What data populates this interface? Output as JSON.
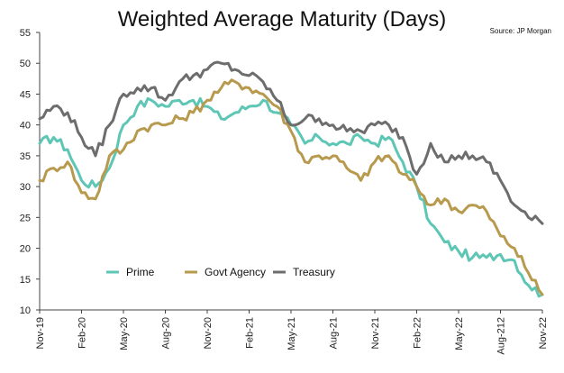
{
  "chart_data": {
    "type": "line",
    "title": "Weighted Average Maturity (Days)",
    "source": "Source: JP Morgan",
    "xlabel": "",
    "ylabel": "",
    "ylim": [
      10,
      55
    ],
    "yticks": [
      10,
      15,
      20,
      25,
      30,
      35,
      40,
      45,
      50,
      55
    ],
    "xlim": [
      "2019-11",
      "2022-11"
    ],
    "xticks": [
      "Nov-19",
      "Feb-20",
      "May-20",
      "Aug-20",
      "Nov-20",
      "Feb-21",
      "May-21",
      "Aug-21",
      "Nov-21",
      "Feb-22",
      "May-22",
      "Aug-212",
      "Nov-22"
    ],
    "legend_position": "lower-left",
    "grid": false,
    "series": [
      {
        "name": "Prime",
        "color": "#5ec6b5",
        "x": [
          "2019-11",
          "2019-12",
          "2020-01",
          "2020-02",
          "2020-03",
          "2020-04",
          "2020-05",
          "2020-06",
          "2020-07",
          "2020-08",
          "2020-09",
          "2020-10",
          "2020-11",
          "2020-12",
          "2021-01",
          "2021-02",
          "2021-03",
          "2021-04",
          "2021-05",
          "2021-06",
          "2021-07",
          "2021-08",
          "2021-09",
          "2021-10",
          "2021-11",
          "2021-12",
          "2022-01",
          "2022-02",
          "2022-03",
          "2022-04",
          "2022-05",
          "2022-06",
          "2022-07",
          "2022-08",
          "2022-09",
          "2022-10",
          "2022-11"
        ],
        "values": [
          37,
          38,
          36,
          31,
          30,
          33,
          40,
          43,
          44,
          43,
          44,
          44,
          43,
          41,
          42,
          43,
          44,
          42,
          40,
          37,
          38,
          37,
          37,
          38,
          37,
          38,
          34,
          30,
          24,
          21,
          19.5,
          18.5,
          18.5,
          19,
          18,
          14,
          12.5
        ]
      },
      {
        "name": "Govt Agency",
        "color": "#b89a4e",
        "x": [
          "2019-11",
          "2019-12",
          "2020-01",
          "2020-02",
          "2020-03",
          "2020-04",
          "2020-05",
          "2020-06",
          "2020-07",
          "2020-08",
          "2020-09",
          "2020-10",
          "2020-11",
          "2020-12",
          "2021-01",
          "2021-02",
          "2021-03",
          "2021-04",
          "2021-05",
          "2021-06",
          "2021-07",
          "2021-08",
          "2021-09",
          "2021-10",
          "2021-11",
          "2021-12",
          "2022-01",
          "2022-02",
          "2022-03",
          "2022-04",
          "2022-05",
          "2022-06",
          "2022-07",
          "2022-08",
          "2022-09",
          "2022-10",
          "2022-11"
        ],
        "values": [
          31,
          33,
          34,
          29,
          28,
          35,
          36,
          39,
          40,
          40,
          41,
          42,
          44,
          46,
          47,
          46,
          45,
          43,
          39,
          34,
          35,
          35,
          33,
          31,
          34,
          35,
          32,
          30,
          27,
          28,
          26,
          27,
          26,
          22,
          20,
          16,
          12.5
        ]
      },
      {
        "name": "Treasury",
        "color": "#6d6d6d",
        "x": [
          "2019-11",
          "2019-12",
          "2020-01",
          "2020-02",
          "2020-03",
          "2020-04",
          "2020-05",
          "2020-06",
          "2020-07",
          "2020-08",
          "2020-09",
          "2020-10",
          "2020-11",
          "2020-12",
          "2021-01",
          "2021-02",
          "2021-03",
          "2021-04",
          "2021-05",
          "2021-06",
          "2021-07",
          "2021-08",
          "2021-09",
          "2021-10",
          "2021-11",
          "2021-12",
          "2022-01",
          "2022-02",
          "2022-03",
          "2022-04",
          "2022-05",
          "2022-06",
          "2022-07",
          "2022-08",
          "2022-09",
          "2022-10",
          "2022-11"
        ],
        "values": [
          41,
          43,
          42,
          38,
          35,
          40,
          45,
          46,
          46,
          44,
          47,
          48,
          49,
          50,
          49,
          48,
          47,
          44,
          40,
          41,
          41,
          40,
          39,
          39,
          40,
          40,
          38,
          32,
          37,
          34,
          35,
          35,
          34,
          31,
          27,
          25,
          24
        ]
      }
    ]
  }
}
